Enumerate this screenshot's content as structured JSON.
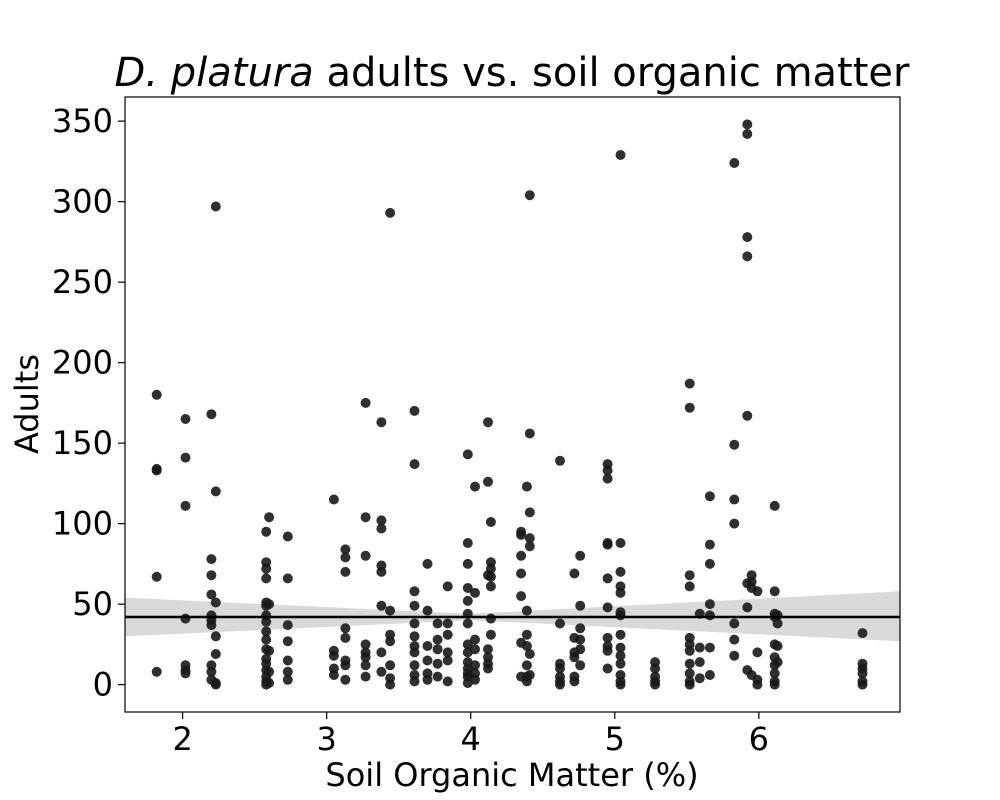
{
  "chart_data": {
    "type": "scatter",
    "title_italic": "D. platura",
    "title_rest": " adults vs. soil organic matter",
    "xlabel": "Soil Organic Matter (%)",
    "ylabel": "Adults",
    "xlim": [
      1.6,
      6.98
    ],
    "ylim": [
      -17,
      365
    ],
    "xticks": [
      2,
      3,
      4,
      5,
      6
    ],
    "yticks": [
      0,
      50,
      100,
      150,
      200,
      250,
      300,
      350
    ],
    "point_color": "#1a1a1a",
    "regression": {
      "color": "#000000",
      "x": [
        1.6,
        6.98
      ],
      "y": [
        42,
        42
      ],
      "ci_color": "#d9d9d9",
      "ci_x": [
        1.6,
        4.0,
        6.98
      ],
      "ci_upper": [
        54,
        44,
        58
      ],
      "ci_lower": [
        30,
        40,
        27
      ]
    },
    "points": [
      [
        1.82,
        180
      ],
      [
        1.82,
        134
      ],
      [
        1.82,
        133
      ],
      [
        1.82,
        67
      ],
      [
        1.82,
        8
      ],
      [
        2.02,
        165
      ],
      [
        2.02,
        141
      ],
      [
        2.02,
        111
      ],
      [
        2.02,
        41
      ],
      [
        2.02,
        12
      ],
      [
        2.02,
        9
      ],
      [
        2.02,
        7
      ],
      [
        2.2,
        168
      ],
      [
        2.2,
        78
      ],
      [
        2.2,
        68
      ],
      [
        2.2,
        56
      ],
      [
        2.2,
        43
      ],
      [
        2.2,
        40
      ],
      [
        2.2,
        37
      ],
      [
        2.2,
        12
      ],
      [
        2.2,
        8
      ],
      [
        2.2,
        3
      ],
      [
        2.23,
        297
      ],
      [
        2.23,
        120
      ],
      [
        2.23,
        51
      ],
      [
        2.23,
        30
      ],
      [
        2.23,
        19
      ],
      [
        2.23,
        1
      ],
      [
        2.23,
        0
      ],
      [
        2.58,
        95
      ],
      [
        2.58,
        76
      ],
      [
        2.58,
        72
      ],
      [
        2.58,
        66
      ],
      [
        2.58,
        51
      ],
      [
        2.58,
        49
      ],
      [
        2.58,
        43
      ],
      [
        2.58,
        39
      ],
      [
        2.58,
        33
      ],
      [
        2.58,
        28
      ],
      [
        2.58,
        22
      ],
      [
        2.58,
        16
      ],
      [
        2.58,
        13
      ],
      [
        2.58,
        9
      ],
      [
        2.58,
        5
      ],
      [
        2.58,
        2
      ],
      [
        2.58,
        0
      ],
      [
        2.6,
        104
      ],
      [
        2.6,
        50
      ],
      [
        2.6,
        21
      ],
      [
        2.6,
        8
      ],
      [
        2.6,
        1
      ],
      [
        2.73,
        92
      ],
      [
        2.73,
        66
      ],
      [
        2.73,
        37
      ],
      [
        2.73,
        27
      ],
      [
        2.73,
        15
      ],
      [
        2.73,
        8
      ],
      [
        2.73,
        3
      ],
      [
        3.05,
        115
      ],
      [
        3.05,
        21
      ],
      [
        3.05,
        18
      ],
      [
        3.05,
        10
      ],
      [
        3.05,
        6
      ],
      [
        3.13,
        84
      ],
      [
        3.13,
        79
      ],
      [
        3.13,
        70
      ],
      [
        3.13,
        35
      ],
      [
        3.13,
        29
      ],
      [
        3.13,
        15
      ],
      [
        3.13,
        12
      ],
      [
        3.13,
        3
      ],
      [
        3.27,
        175
      ],
      [
        3.27,
        104
      ],
      [
        3.27,
        80
      ],
      [
        3.27,
        25
      ],
      [
        3.27,
        20
      ],
      [
        3.27,
        17
      ],
      [
        3.27,
        12
      ],
      [
        3.27,
        5
      ],
      [
        3.38,
        163
      ],
      [
        3.38,
        102
      ],
      [
        3.38,
        97
      ],
      [
        3.38,
        74
      ],
      [
        3.38,
        70
      ],
      [
        3.38,
        49
      ],
      [
        3.38,
        20
      ],
      [
        3.38,
        8
      ],
      [
        3.44,
        293
      ],
      [
        3.44,
        46
      ],
      [
        3.44,
        31
      ],
      [
        3.44,
        27
      ],
      [
        3.44,
        12
      ],
      [
        3.44,
        4
      ],
      [
        3.44,
        0
      ],
      [
        3.61,
        170
      ],
      [
        3.61,
        137
      ],
      [
        3.61,
        58
      ],
      [
        3.61,
        49
      ],
      [
        3.61,
        38
      ],
      [
        3.61,
        30
      ],
      [
        3.61,
        24
      ],
      [
        3.61,
        20
      ],
      [
        3.61,
        12
      ],
      [
        3.61,
        6
      ],
      [
        3.61,
        2
      ],
      [
        3.7,
        75
      ],
      [
        3.7,
        46
      ],
      [
        3.7,
        24
      ],
      [
        3.7,
        15
      ],
      [
        3.7,
        7
      ],
      [
        3.7,
        3
      ],
      [
        3.77,
        38
      ],
      [
        3.77,
        28
      ],
      [
        3.77,
        22
      ],
      [
        3.77,
        13
      ],
      [
        3.77,
        5
      ],
      [
        3.84,
        61
      ],
      [
        3.84,
        38
      ],
      [
        3.84,
        31
      ],
      [
        3.84,
        20
      ],
      [
        3.84,
        15
      ],
      [
        3.84,
        2
      ],
      [
        3.98,
        143
      ],
      [
        3.98,
        88
      ],
      [
        3.98,
        75
      ],
      [
        3.98,
        60
      ],
      [
        3.98,
        52
      ],
      [
        3.98,
        44
      ],
      [
        3.98,
        38
      ],
      [
        3.98,
        25
      ],
      [
        3.98,
        20
      ],
      [
        3.98,
        14
      ],
      [
        3.98,
        10
      ],
      [
        3.98,
        7
      ],
      [
        3.98,
        5
      ],
      [
        3.98,
        1
      ],
      [
        4.03,
        123
      ],
      [
        4.03,
        57
      ],
      [
        4.03,
        28
      ],
      [
        4.03,
        22
      ],
      [
        4.03,
        12
      ],
      [
        4.03,
        7
      ],
      [
        4.03,
        3
      ],
      [
        4.12,
        163
      ],
      [
        4.12,
        126
      ],
      [
        4.12,
        68
      ],
      [
        4.12,
        22
      ],
      [
        4.12,
        17
      ],
      [
        4.12,
        13
      ],
      [
        4.12,
        10
      ],
      [
        4.14,
        101
      ],
      [
        4.14,
        76
      ],
      [
        4.14,
        72
      ],
      [
        4.14,
        67
      ],
      [
        4.14,
        61
      ],
      [
        4.14,
        41
      ],
      [
        4.14,
        31
      ],
      [
        4.35,
        95
      ],
      [
        4.35,
        93
      ],
      [
        4.35,
        80
      ],
      [
        4.35,
        69
      ],
      [
        4.35,
        55
      ],
      [
        4.35,
        26
      ],
      [
        4.35,
        5
      ],
      [
        4.39,
        123
      ],
      [
        4.39,
        46
      ],
      [
        4.39,
        31
      ],
      [
        4.39,
        24
      ],
      [
        4.39,
        12
      ],
      [
        4.39,
        5
      ],
      [
        4.39,
        2
      ],
      [
        4.41,
        304
      ],
      [
        4.41,
        156
      ],
      [
        4.41,
        107
      ],
      [
        4.41,
        91
      ],
      [
        4.41,
        86
      ],
      [
        4.41,
        19
      ],
      [
        4.41,
        6
      ],
      [
        4.62,
        139
      ],
      [
        4.62,
        38
      ],
      [
        4.62,
        13
      ],
      [
        4.62,
        10
      ],
      [
        4.62,
        5
      ],
      [
        4.62,
        2
      ],
      [
        4.62,
        0
      ],
      [
        4.72,
        69
      ],
      [
        4.72,
        29
      ],
      [
        4.72,
        20
      ],
      [
        4.72,
        17
      ],
      [
        4.72,
        5
      ],
      [
        4.72,
        2
      ],
      [
        4.76,
        80
      ],
      [
        4.76,
        49
      ],
      [
        4.76,
        35
      ],
      [
        4.76,
        28
      ],
      [
        4.76,
        22
      ],
      [
        4.76,
        12
      ],
      [
        4.95,
        137
      ],
      [
        4.95,
        133
      ],
      [
        4.95,
        128
      ],
      [
        4.95,
        88
      ],
      [
        4.95,
        87
      ],
      [
        4.95,
        66
      ],
      [
        4.95,
        48
      ],
      [
        4.95,
        29
      ],
      [
        4.95,
        24
      ],
      [
        4.95,
        21
      ],
      [
        4.95,
        10
      ],
      [
        5.04,
        329
      ],
      [
        5.04,
        88
      ],
      [
        5.04,
        70
      ],
      [
        5.04,
        61
      ],
      [
        5.04,
        57
      ],
      [
        5.04,
        45
      ],
      [
        5.04,
        43
      ],
      [
        5.04,
        31
      ],
      [
        5.04,
        23
      ],
      [
        5.04,
        18
      ],
      [
        5.04,
        13
      ],
      [
        5.04,
        6
      ],
      [
        5.04,
        2
      ],
      [
        5.04,
        0
      ],
      [
        5.28,
        14
      ],
      [
        5.28,
        10
      ],
      [
        5.28,
        5
      ],
      [
        5.28,
        2
      ],
      [
        5.28,
        0
      ],
      [
        5.52,
        187
      ],
      [
        5.52,
        172
      ],
      [
        5.52,
        68
      ],
      [
        5.52,
        61
      ],
      [
        5.52,
        29
      ],
      [
        5.52,
        25
      ],
      [
        5.52,
        21
      ],
      [
        5.52,
        13
      ],
      [
        5.52,
        7
      ],
      [
        5.52,
        2
      ],
      [
        5.52,
        0
      ],
      [
        5.59,
        44
      ],
      [
        5.59,
        23
      ],
      [
        5.59,
        14
      ],
      [
        5.59,
        4
      ],
      [
        5.66,
        117
      ],
      [
        5.66,
        87
      ],
      [
        5.66,
        75
      ],
      [
        5.66,
        50
      ],
      [
        5.66,
        43
      ],
      [
        5.66,
        23
      ],
      [
        5.66,
        6
      ],
      [
        5.83,
        324
      ],
      [
        5.83,
        149
      ],
      [
        5.83,
        115
      ],
      [
        5.83,
        100
      ],
      [
        5.83,
        38
      ],
      [
        5.83,
        28
      ],
      [
        5.83,
        18
      ],
      [
        5.92,
        348
      ],
      [
        5.92,
        342
      ],
      [
        5.92,
        278
      ],
      [
        5.92,
        266
      ],
      [
        5.92,
        167
      ],
      [
        5.92,
        63
      ],
      [
        5.92,
        48
      ],
      [
        5.92,
        9
      ],
      [
        5.95,
        68
      ],
      [
        5.95,
        64
      ],
      [
        5.95,
        60
      ],
      [
        5.95,
        6
      ],
      [
        5.99,
        58
      ],
      [
        5.99,
        20
      ],
      [
        5.99,
        3
      ],
      [
        5.99,
        0
      ],
      [
        6.11,
        111
      ],
      [
        6.11,
        58
      ],
      [
        6.11,
        44
      ],
      [
        6.11,
        42
      ],
      [
        6.11,
        25
      ],
      [
        6.11,
        17
      ],
      [
        6.11,
        12
      ],
      [
        6.11,
        7
      ],
      [
        6.11,
        2
      ],
      [
        6.11,
        0
      ],
      [
        6.13,
        43
      ],
      [
        6.13,
        38
      ],
      [
        6.13,
        24
      ],
      [
        6.13,
        14
      ],
      [
        6.72,
        32
      ],
      [
        6.72,
        13
      ],
      [
        6.72,
        10
      ],
      [
        6.72,
        7
      ],
      [
        6.72,
        2
      ],
      [
        6.72,
        0
      ]
    ]
  }
}
